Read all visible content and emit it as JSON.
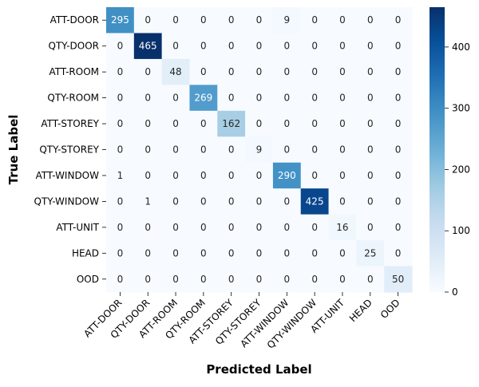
{
  "chart_data": {
    "type": "heatmap",
    "title": "",
    "xlabel": "Predicted Label",
    "ylabel": "True Label",
    "x_categories": [
      "ATT-DOOR",
      "QTY-DOOR",
      "ATT-ROOM",
      "QTY-ROOM",
      "ATT-STOREY",
      "QTY-STOREY",
      "ATT-WINDOW",
      "QTY-WINDOW",
      "ATT-UNIT",
      "HEAD",
      "OOD"
    ],
    "y_categories": [
      "ATT-DOOR",
      "QTY-DOOR",
      "ATT-ROOM",
      "QTY-ROOM",
      "ATT-STOREY",
      "QTY-STOREY",
      "ATT-WINDOW",
      "QTY-WINDOW",
      "ATT-UNIT",
      "HEAD",
      "OOD"
    ],
    "values": [
      [
        295,
        0,
        0,
        0,
        0,
        0,
        9,
        0,
        0,
        0,
        0
      ],
      [
        0,
        465,
        0,
        0,
        0,
        0,
        0,
        0,
        0,
        0,
        0
      ],
      [
        0,
        0,
        48,
        0,
        0,
        0,
        0,
        0,
        0,
        0,
        0
      ],
      [
        0,
        0,
        0,
        269,
        0,
        0,
        0,
        0,
        0,
        0,
        0
      ],
      [
        0,
        0,
        0,
        0,
        162,
        0,
        0,
        0,
        0,
        0,
        0
      ],
      [
        0,
        0,
        0,
        0,
        0,
        9,
        0,
        0,
        0,
        0,
        0
      ],
      [
        1,
        0,
        0,
        0,
        0,
        0,
        290,
        0,
        0,
        0,
        0
      ],
      [
        0,
        1,
        0,
        0,
        0,
        0,
        0,
        425,
        0,
        0,
        0
      ],
      [
        0,
        0,
        0,
        0,
        0,
        0,
        0,
        0,
        16,
        0,
        0
      ],
      [
        0,
        0,
        0,
        0,
        0,
        0,
        0,
        0,
        0,
        25,
        0
      ],
      [
        0,
        0,
        0,
        0,
        0,
        0,
        0,
        0,
        0,
        0,
        50
      ]
    ],
    "colormap": "Blues",
    "colorbar": {
      "range": [
        0,
        465
      ],
      "ticks": [
        0,
        100,
        200,
        300,
        400
      ]
    },
    "annotations": "cell values printed",
    "grid": false
  }
}
